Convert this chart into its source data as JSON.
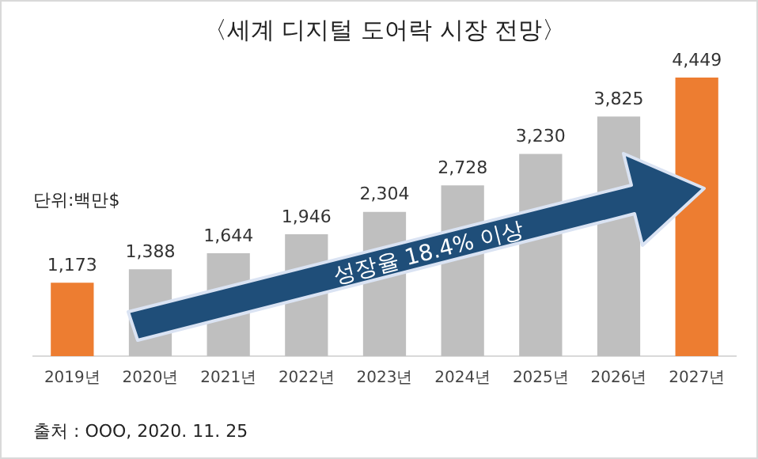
{
  "chart_data": {
    "type": "bar",
    "title": "〈세계 디지털 도어락 시장 전망〉",
    "categories": [
      "2019년",
      "2020년",
      "2021년",
      "2022년",
      "2023년",
      "2024년",
      "2025년",
      "2026년",
      "2027년"
    ],
    "values": [
      1173,
      1388,
      1644,
      1946,
      2304,
      2728,
      3230,
      3825,
      4449
    ],
    "colors": [
      "#ed7d31",
      "#bfbfbf",
      "#bfbfbf",
      "#bfbfbf",
      "#bfbfbf",
      "#bfbfbf",
      "#bfbfbf",
      "#bfbfbf",
      "#ed7d31"
    ],
    "value_labels": [
      "1,173",
      "1,388",
      "1,644",
      "1,946",
      "2,304",
      "2,728",
      "3,230",
      "3,825",
      "4,449"
    ],
    "tick_labels": "x",
    "grid": false,
    "legend": false,
    "annotations": [
      "단위:백만$",
      "성장율 18.4% 이상",
      "출처 : OOO, 2020. 11. 25"
    ]
  }
}
